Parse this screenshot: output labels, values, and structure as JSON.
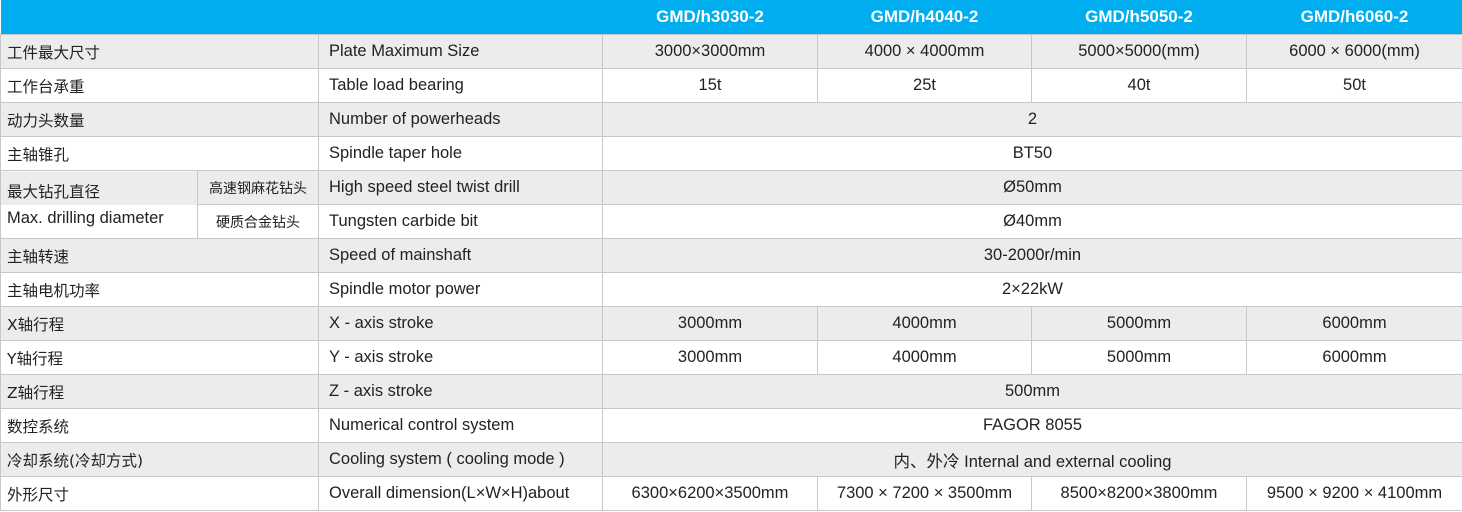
{
  "header": {
    "models": [
      "GMD/h3030-2",
      "GMD/h4040-2",
      "GMD/h5050-2",
      "GMD/h6060-2"
    ]
  },
  "colors": {
    "header_bg": "#00aeef",
    "row_alt": "#ececec"
  },
  "rows": [
    {
      "cn": "工件最大尺寸",
      "en": "Plate Maximum Size",
      "values": [
        "3000×3000mm",
        "4000 × 4000mm",
        "5000×5000(mm)",
        "6000 × 6000(mm)"
      ]
    },
    {
      "cn": "工作台承重",
      "en": "Table load bearing",
      "values": [
        "15t",
        "25t",
        "40t",
        "50t"
      ]
    },
    {
      "cn": "动力头数量",
      "en": "Number of powerheads",
      "values": [
        "2"
      ]
    },
    {
      "cn": "主轴锥孔",
      "en": "Spindle taper hole",
      "values": [
        "BT50"
      ]
    },
    {
      "cn": "最大钻孔直径",
      "cn_en": "Max. drilling diameter",
      "sub": "高速钢麻花钻头",
      "en": "High speed steel twist drill",
      "values": [
        "Ø50mm"
      ]
    },
    {
      "sub": "硬质合金钻头",
      "en": "Tungsten carbide bit",
      "values": [
        "Ø40mm"
      ]
    },
    {
      "cn": "主轴转速",
      "en": "Speed of mainshaft",
      "values": [
        "30-2000r/min"
      ]
    },
    {
      "cn": "主轴电机功率",
      "en": "Spindle motor power",
      "values": [
        "2×22kW"
      ]
    },
    {
      "cn": "X轴行程",
      "en": "X - axis stroke",
      "values": [
        "3000mm",
        "4000mm",
        "5000mm",
        "6000mm"
      ]
    },
    {
      "cn": "Y轴行程",
      "en": "Y - axis stroke",
      "values": [
        "3000mm",
        "4000mm",
        "5000mm",
        "6000mm"
      ]
    },
    {
      "cn": "Z轴行程",
      "en": "Z - axis stroke",
      "values": [
        "500mm"
      ]
    },
    {
      "cn": "数控系统",
      "en": "Numerical control system",
      "values": [
        "FAGOR 8055"
      ]
    },
    {
      "cn": "冷却系统(冷却方式)",
      "en": "Cooling system ( cooling mode )",
      "values": [
        "内、外冷 Internal and external cooling"
      ]
    },
    {
      "cn": "外形尺寸",
      "en": "Overall dimension(L×W×H)about",
      "values": [
        "6300×6200×3500mm",
        "7300 × 7200 × 3500mm",
        "8500×8200×3800mm",
        "9500 × 9200 × 4100mm"
      ]
    }
  ]
}
